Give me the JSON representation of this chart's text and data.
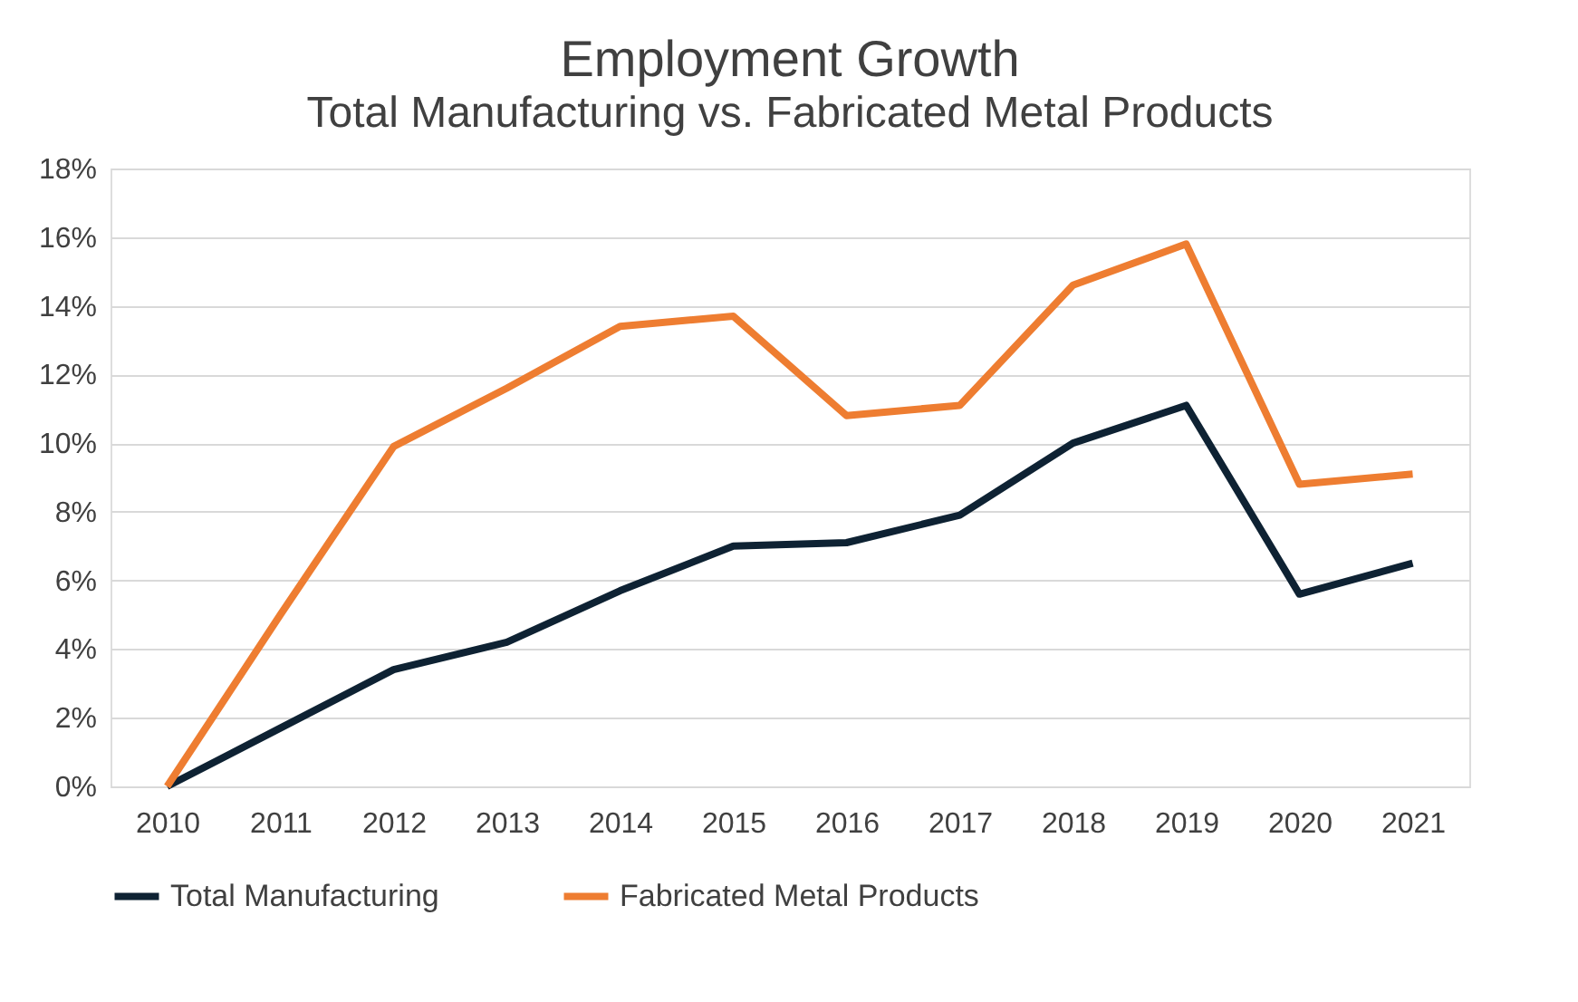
{
  "chart_data": {
    "type": "line",
    "title": "Employment Growth",
    "subtitle": "Total Manufacturing vs. Fabricated Metal Products",
    "categories": [
      "2010",
      "2011",
      "2012",
      "2013",
      "2014",
      "2015",
      "2016",
      "2017",
      "2018",
      "2019",
      "2020",
      "2021"
    ],
    "series": [
      {
        "name": "Total Manufacturing",
        "color": "#0e2233",
        "values": [
          0,
          1.7,
          3.4,
          4.2,
          5.7,
          7.0,
          7.1,
          7.9,
          10.0,
          11.1,
          5.6,
          6.5
        ]
      },
      {
        "name": "Fabricated Metal Products",
        "color": "#ee7d31",
        "values": [
          0,
          5.0,
          9.9,
          11.6,
          13.4,
          13.7,
          10.8,
          11.1,
          14.6,
          15.8,
          8.8,
          9.1
        ]
      }
    ],
    "ylim": [
      0,
      18
    ],
    "yticks": [
      {
        "value": 0,
        "label": "0%"
      },
      {
        "value": 2,
        "label": "2%"
      },
      {
        "value": 4,
        "label": "4%"
      },
      {
        "value": 6,
        "label": "6%"
      },
      {
        "value": 8,
        "label": "8%"
      },
      {
        "value": 10,
        "label": "10%"
      },
      {
        "value": 12,
        "label": "12%"
      },
      {
        "value": 14,
        "label": "14%"
      },
      {
        "value": 16,
        "label": "16%"
      },
      {
        "value": 18,
        "label": "18%"
      }
    ],
    "grid": "y",
    "legend": "bottom",
    "marker": "none",
    "line_style": "solid"
  }
}
